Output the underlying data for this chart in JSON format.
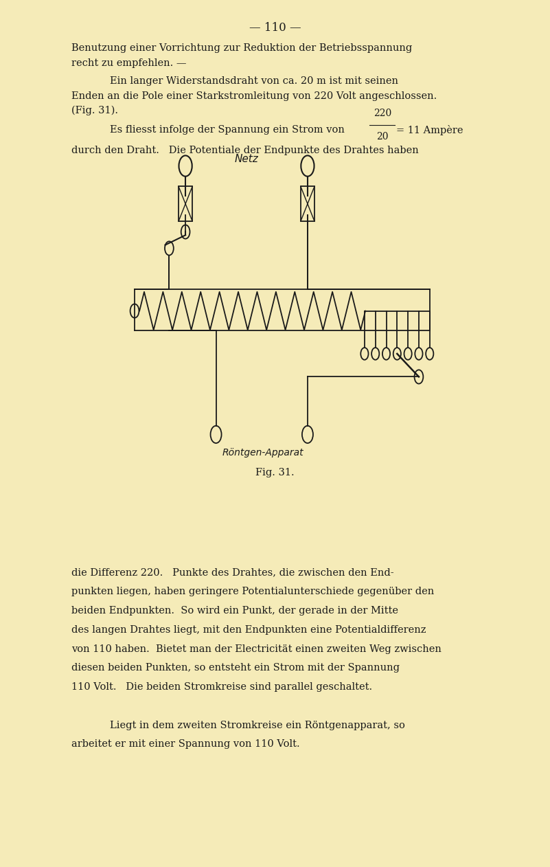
{
  "background_color": "#f5ebb8",
  "page_width": 8.01,
  "page_height": 12.62,
  "dpi": 100,
  "text_color": "#1a1a1a",
  "line_color": "#1a1a1a",
  "page_number": "— 110 —",
  "para1_line1": "Benutzung einer Vorrichtung zur Reduktion der Betriebsspannung",
  "para1_line2": "recht zu empfehlen. —",
  "para2_line1": "Ein langer Widerstandsdraht von ca. 20 m ist mit seinen",
  "para2_line2": "Enden an die Pole einer Starkstromleitung von 220 Volt angeschlossen.",
  "para2_line3": "(Fig. 31).",
  "formula_prefix": "Es fliesst infolge der Spannung ein Strom von",
  "formula_num": "220",
  "formula_den": "20",
  "formula_suffix": "= 11 Ampère",
  "para3_line1": "durch den Draht.   Die Potentiale der Endpunkte des Drahtes haben",
  "netz_label": "Netz",
  "fig_label": "Fig. 31.",
  "roentgen_label": "Röntgen-Apparat",
  "bottom_para_line1": "die Differenz 220.   Punkte des Drahtes, die zwischen den End-",
  "bottom_para_line2": "punkten liegen, haben geringere Potentialunterschiede gegenüber den",
  "bottom_para_line3": "beiden Endpunkten.  So wird ein Punkt, der gerade in der Mitte",
  "bottom_para_line4": "des langen Drahtes liegt, mit den Endpunkten eine Potentialdifferenz",
  "bottom_para_line5": "von 110 haben.  Bietet man der Electricität einen zweiten Weg zwischen",
  "bottom_para_line6": "diesen beiden Punkten, so entsteht ein Strom mit der Spannung",
  "bottom_para_line7": "110 Volt.   Die beiden Stromkreise sind parallel geschaltet.",
  "bottom_para_line8": "Liegt in dem zweiten Stromkreise ein Röntgenapparat, so",
  "bottom_para_line9": "arbeitet er mit einer Spannung von 110 Volt."
}
